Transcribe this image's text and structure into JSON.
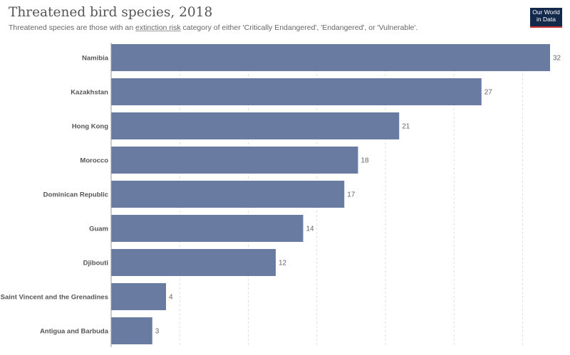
{
  "header": {
    "title": "Threatened bird species, 2018",
    "subtitle_pre": "Threatened species are those with an ",
    "subtitle_link": "extinction risk",
    "subtitle_post": " category of either 'Critically Endangered', 'Endangered', or 'Vulnerable'."
  },
  "logo": {
    "line1": "Our World",
    "line2": "in Data"
  },
  "colors": {
    "bar": "#6a7ba2",
    "logo_bg": "#13294b",
    "logo_accent": "#c4332f"
  },
  "chart_data": {
    "type": "bar",
    "orientation": "horizontal",
    "title": "Threatened bird species, 2018",
    "categories": [
      "Namibia",
      "Kazakhstan",
      "Hong Kong",
      "Morocco",
      "Dominican Republic",
      "Guam",
      "Djibouti",
      "Saint Vincent and the Grenadines",
      "Antigua and Barbuda"
    ],
    "values": [
      32,
      27,
      21,
      18,
      17,
      14,
      12,
      4,
      3
    ],
    "xlim": [
      0,
      32
    ],
    "grid": true,
    "data_labels": true
  }
}
